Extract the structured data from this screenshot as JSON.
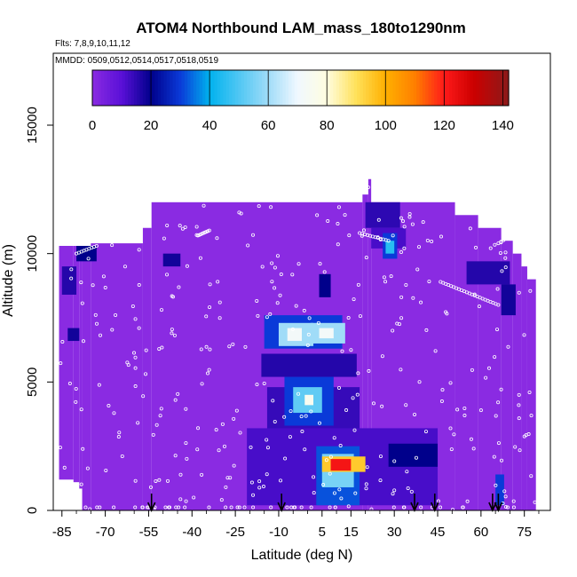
{
  "chart_data": {
    "type": "heatmap",
    "title": "ATOM4 Northbound LAM_mass_180to1290nm",
    "subtitle_flights": "Flts: 7,8,9,10,11,12",
    "subtitle_dates": "MMDD: 0509,0512,0514,0517,0518,0519",
    "xlabel": "Latitude (deg N)",
    "ylabel": "Altitude (m)",
    "xlim": [
      -88,
      84
    ],
    "ylim": [
      0,
      17800
    ],
    "x_ticks": [
      -85,
      -70,
      -55,
      -40,
      -25,
      -10,
      5,
      15,
      30,
      45,
      60,
      75
    ],
    "x_tick_labels": [
      "-85",
      "-70",
      "-55",
      "-40",
      "-25",
      "-10",
      "5",
      "15",
      "30",
      "45",
      "60",
      "75"
    ],
    "y_ticks": [
      0,
      5000,
      10000,
      15000
    ],
    "y_tick_labels": [
      "0",
      "5000",
      "10000",
      "15000"
    ],
    "colorbar": {
      "range": [
        0,
        142
      ],
      "ticks": [
        0,
        20,
        40,
        60,
        80,
        100,
        120,
        140
      ],
      "tick_labels": [
        "0",
        "20",
        "40",
        "60",
        "80",
        "100",
        "120",
        "140"
      ],
      "stops": [
        {
          "v": 0,
          "c": "#8a2be2"
        },
        {
          "v": 10,
          "c": "#5a10d8"
        },
        {
          "v": 20,
          "c": "#00008b"
        },
        {
          "v": 30,
          "c": "#0a3ad8"
        },
        {
          "v": 40,
          "c": "#00b2ee"
        },
        {
          "v": 60,
          "c": "#a0dcf8"
        },
        {
          "v": 70,
          "c": "#f0f8ff"
        },
        {
          "v": 80,
          "c": "#fffde0"
        },
        {
          "v": 90,
          "c": "#ffe15a"
        },
        {
          "v": 100,
          "c": "#ffb000"
        },
        {
          "v": 110,
          "c": "#ff7f00"
        },
        {
          "v": 120,
          "c": "#ff1a1a"
        },
        {
          "v": 130,
          "c": "#cc0000"
        },
        {
          "v": 142,
          "c": "#8b1a1a"
        }
      ]
    },
    "coverage": [
      {
        "lat": [
          -86,
          -81
        ],
        "alt": [
          1200,
          10300
        ]
      },
      {
        "lat": [
          -81,
          -79
        ],
        "alt": [
          1100,
          10300
        ]
      },
      {
        "lat": [
          -79,
          -78
        ],
        "alt": [
          850,
          10300
        ]
      },
      {
        "lat": [
          -78,
          -75
        ],
        "alt": [
          0,
          10300
        ]
      },
      {
        "lat": [
          -75,
          -57
        ],
        "alt": [
          0,
          10400
        ]
      },
      {
        "lat": [
          -57,
          -54
        ],
        "alt": [
          0,
          11000
        ]
      },
      {
        "lat": [
          -54,
          19
        ],
        "alt": [
          0,
          12000
        ]
      },
      {
        "lat": [
          19,
          21
        ],
        "alt": [
          0,
          12300
        ]
      },
      {
        "lat": [
          21,
          22
        ],
        "alt": [
          0,
          12900
        ]
      },
      {
        "lat": [
          22,
          51
        ],
        "alt": [
          0,
          12000
        ]
      },
      {
        "lat": [
          51,
          59
        ],
        "alt": [
          0,
          11500
        ]
      },
      {
        "lat": [
          59,
          67
        ],
        "alt": [
          0,
          11000
        ]
      },
      {
        "lat": [
          67,
          71
        ],
        "alt": [
          0,
          10500
        ]
      },
      {
        "lat": [
          71,
          74
        ],
        "alt": [
          0,
          10000
        ]
      },
      {
        "lat": [
          74,
          76
        ],
        "alt": [
          0,
          9500
        ]
      },
      {
        "lat": [
          76,
          79
        ],
        "alt": [
          0,
          9000
        ]
      }
    ],
    "features": [
      {
        "lat": [
          20,
          32
        ],
        "alt": [
          11000,
          12000
        ],
        "value": 15
      },
      {
        "lat": [
          22,
          34
        ],
        "alt": [
          10200,
          11000
        ],
        "value": 12
      },
      {
        "lat": [
          26,
          31
        ],
        "alt": [
          9800,
          10800
        ],
        "value": 30
      },
      {
        "lat": [
          27,
          30
        ],
        "alt": [
          10000,
          10500
        ],
        "value": 45
      },
      {
        "lat": [
          -80,
          -73
        ],
        "alt": [
          9700,
          10300
        ],
        "value": 20
      },
      {
        "lat": [
          -85,
          -80
        ],
        "alt": [
          8400,
          9500
        ],
        "value": 16
      },
      {
        "lat": [
          -50,
          -44
        ],
        "alt": [
          9500,
          10000
        ],
        "value": 18
      },
      {
        "lat": [
          4,
          8
        ],
        "alt": [
          8300,
          9200
        ],
        "value": 20
      },
      {
        "lat": [
          -83,
          -79
        ],
        "alt": [
          6600,
          7100
        ],
        "value": 18
      },
      {
        "lat": [
          -15,
          12
        ],
        "alt": [
          6300,
          7600
        ],
        "value": 30
      },
      {
        "lat": [
          -10,
          2
        ],
        "alt": [
          6400,
          7300
        ],
        "value": 60
      },
      {
        "lat": [
          -7,
          -2
        ],
        "alt": [
          6600,
          7100
        ],
        "value": 72
      },
      {
        "lat": [
          1,
          13
        ],
        "alt": [
          6500,
          7300
        ],
        "value": 60
      },
      {
        "lat": [
          4,
          9
        ],
        "alt": [
          6700,
          7100
        ],
        "value": 72
      },
      {
        "lat": [
          -16,
          17
        ],
        "alt": [
          5200,
          6100
        ],
        "value": 16
      },
      {
        "lat": [
          -14,
          18
        ],
        "alt": [
          2600,
          4800
        ],
        "value": 14
      },
      {
        "lat": [
          -8,
          9
        ],
        "alt": [
          3300,
          5200
        ],
        "value": 30
      },
      {
        "lat": [
          -5,
          5
        ],
        "alt": [
          3800,
          4800
        ],
        "value": 52
      },
      {
        "lat": [
          -1,
          2
        ],
        "alt": [
          4100,
          4500
        ],
        "value": 75
      },
      {
        "lat": [
          -21,
          45
        ],
        "alt": [
          200,
          3200
        ],
        "value": 12
      },
      {
        "lat": [
          28,
          45
        ],
        "alt": [
          1700,
          2600
        ],
        "value": 20
      },
      {
        "lat": [
          3,
          18
        ],
        "alt": [
          200,
          2500
        ],
        "value": 32
      },
      {
        "lat": [
          5,
          16
        ],
        "alt": [
          900,
          2200
        ],
        "value": 55
      },
      {
        "lat": [
          5,
          20
        ],
        "alt": [
          1500,
          2100
        ],
        "value": 95
      },
      {
        "lat": [
          8,
          15
        ],
        "alt": [
          1550,
          2000
        ],
        "value": 122
      },
      {
        "lat": [
          55,
          70
        ],
        "alt": [
          8800,
          9700
        ],
        "value": 16
      },
      {
        "lat": [
          67,
          72
        ],
        "alt": [
          7600,
          8800
        ],
        "value": 18
      },
      {
        "lat": [
          65,
          68
        ],
        "alt": [
          200,
          1400
        ],
        "value": 30
      }
    ],
    "flight_tracks": [
      {
        "lat": [
          46,
          66
        ],
        "alt": [
          8900,
          8000
        ]
      },
      {
        "lat": [
          66,
          75
        ],
        "alt": [
          10400,
          11000
        ]
      },
      {
        "lat": [
          -73,
          -80
        ],
        "alt": [
          10300,
          10000
        ]
      },
      {
        "lat": [
          -34,
          -38
        ],
        "alt": [
          10900,
          10700
        ]
      },
      {
        "lat": [
          18,
          28
        ],
        "alt": [
          10800,
          10500
        ]
      }
    ],
    "profile_markers_lat": [
      -54,
      -9,
      37,
      44,
      64,
      66
    ]
  }
}
